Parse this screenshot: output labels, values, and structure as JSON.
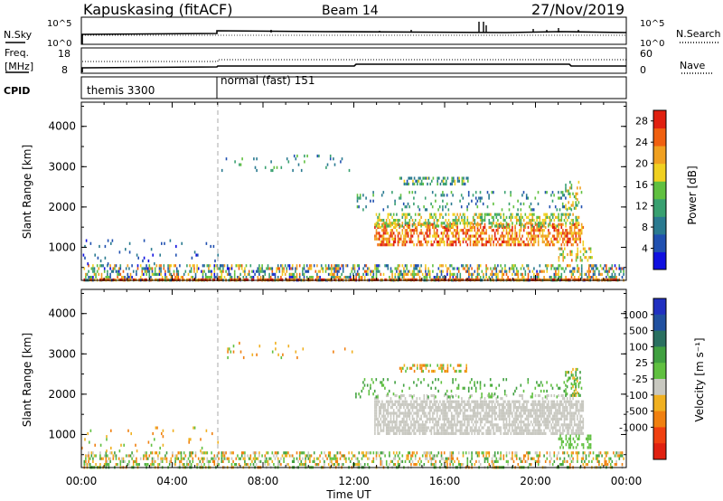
{
  "header": {
    "station": "Kapuskasing (fitACF)",
    "beam": "Beam 14",
    "date": "27/Nov/2019"
  },
  "noise_panel": {
    "left_label": "N.Sky",
    "left_ticks": [
      "10^5",
      "10^0"
    ],
    "right_ticks": [
      "10^5",
      "10^0"
    ],
    "right_label": "N.Search"
  },
  "freq_panel": {
    "left_label_1": "Freq.",
    "left_label_2": "[MHz]",
    "left_ticks": [
      "18",
      "8"
    ],
    "right_ticks": [
      "60",
      "0"
    ],
    "right_label": "Nave"
  },
  "cpid_panel": {
    "label": "CPID",
    "mode_1": "themis 3300",
    "mode_2": "normal (fast) 151"
  },
  "xaxis": {
    "title": "Time UT",
    "ticks": [
      "00:00",
      "04:00",
      "08:00",
      "12:00",
      "16:00",
      "20:00",
      "00:00"
    ]
  },
  "colors": {
    "power_scale": [
      "#1010e0",
      "#2050b0",
      "#2a7a90",
      "#38a070",
      "#60c040",
      "#f0d020",
      "#f0a020",
      "#f06010",
      "#e02010"
    ],
    "velocity_scale": [
      "#2030c0",
      "#2050a0",
      "#2a7060",
      "#40a040",
      "#60c040",
      "#c8c8c0",
      "#f0b020",
      "#f08010",
      "#f04010",
      "#e02010"
    ]
  },
  "chart_data": [
    {
      "type": "heatmap",
      "name": "power",
      "ylabel": "Slant Range [km]",
      "xlabel": "",
      "xlim": [
        0,
        24
      ],
      "ylim": [
        180,
        4600
      ],
      "yticks": [
        1000,
        2000,
        3000,
        4000
      ],
      "colorbar_label": "Power [dB]",
      "colorbar_ticks": [
        "4",
        "8",
        "12",
        "16",
        "20",
        "24",
        "28"
      ],
      "colorbar_range": [
        0,
        30
      ],
      "regions": [
        {
          "t0": 0.1,
          "t1": 23.9,
          "r0": 200,
          "r1": 580,
          "v_lo": 2,
          "v_hi": 26,
          "density": 0.45
        },
        {
          "t0": 0.1,
          "t1": 23.9,
          "r0": 190,
          "r1": 230,
          "v_lo": 20,
          "v_hi": 30,
          "density": 0.7
        },
        {
          "t0": 0.0,
          "t1": 6.0,
          "r0": 580,
          "r1": 1200,
          "v_lo": 2,
          "v_hi": 10,
          "density": 0.04
        },
        {
          "t0": 6.1,
          "t1": 12.0,
          "r0": 2900,
          "r1": 3300,
          "v_lo": 4,
          "v_hi": 16,
          "density": 0.05
        },
        {
          "t0": 12.9,
          "t1": 22.1,
          "r0": 1050,
          "r1": 1600,
          "v_lo": 18,
          "v_hi": 30,
          "density": 0.55
        },
        {
          "t0": 12.9,
          "t1": 21.9,
          "r0": 1550,
          "r1": 1850,
          "v_lo": 10,
          "v_hi": 22,
          "density": 0.5
        },
        {
          "t0": 14.0,
          "t1": 17.0,
          "r0": 2550,
          "r1": 2750,
          "v_lo": 6,
          "v_hi": 18,
          "density": 0.45
        },
        {
          "t0": 12.0,
          "t1": 22.0,
          "r0": 1900,
          "r1": 2400,
          "v_lo": 4,
          "v_hi": 16,
          "density": 0.12
        },
        {
          "t0": 21.3,
          "t1": 22.0,
          "r0": 1950,
          "r1": 2650,
          "v_lo": 10,
          "v_hi": 22,
          "density": 0.4
        },
        {
          "t0": 21.0,
          "t1": 22.5,
          "r0": 650,
          "r1": 1000,
          "v_lo": 12,
          "v_hi": 26,
          "density": 0.3
        }
      ]
    },
    {
      "type": "heatmap",
      "name": "velocity",
      "ylabel": "Slant Range [km]",
      "xlabel": "Time UT",
      "xlim": [
        0,
        24
      ],
      "ylim": [
        180,
        4600
      ],
      "yticks": [
        1000,
        2000,
        3000,
        4000
      ],
      "colorbar_label": "Velocity [m s⁻¹]",
      "colorbar_ticks": [
        "1000",
        "500",
        "100",
        "25",
        "-25",
        "-100",
        "-500",
        "-1000"
      ],
      "regions": [
        {
          "t0": 0.1,
          "t1": 23.9,
          "r0": 200,
          "r1": 580,
          "classes": [
            3,
            4,
            5,
            6,
            7
          ],
          "density": 0.4
        },
        {
          "t0": 0.0,
          "t1": 6.0,
          "r0": 580,
          "r1": 1200,
          "classes": [
            4,
            6,
            7
          ],
          "density": 0.04
        },
        {
          "t0": 6.1,
          "t1": 12.0,
          "r0": 2900,
          "r1": 3300,
          "classes": [
            4,
            6,
            7
          ],
          "density": 0.05
        },
        {
          "t0": 12.9,
          "t1": 22.1,
          "r0": 1050,
          "r1": 1850,
          "classes": [
            5
          ],
          "density": 0.7
        },
        {
          "t0": 12.9,
          "t1": 21.9,
          "r0": 1900,
          "r1": 2000,
          "classes": [
            5
          ],
          "density": 0.3
        },
        {
          "t0": 14.0,
          "t1": 17.0,
          "r0": 2550,
          "r1": 2750,
          "classes": [
            4,
            6,
            7
          ],
          "density": 0.45
        },
        {
          "t0": 12.0,
          "t1": 22.0,
          "r0": 1950,
          "r1": 2400,
          "classes": [
            3,
            4
          ],
          "density": 0.12
        },
        {
          "t0": 21.3,
          "t1": 22.0,
          "r0": 1950,
          "r1": 2650,
          "classes": [
            3,
            4,
            6
          ],
          "density": 0.4
        },
        {
          "t0": 21.0,
          "t1": 22.5,
          "r0": 650,
          "r1": 1000,
          "classes": [
            4
          ],
          "density": 0.4
        }
      ]
    }
  ]
}
